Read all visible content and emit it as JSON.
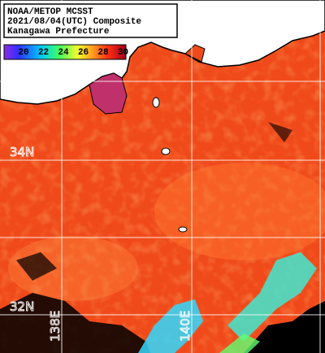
{
  "header": {
    "lines": [
      "NOAA/METOP MCSST",
      "2021/08/04(UTC) Composite",
      "Kanagawa Prefecture"
    ]
  },
  "colorbar": {
    "ticks": [
      "20",
      "22",
      "24",
      "26",
      "28",
      "30"
    ]
  },
  "grid": {
    "latitudes": [
      "34N",
      "32N"
    ],
    "longitudes": [
      "138E",
      "140E"
    ]
  }
}
